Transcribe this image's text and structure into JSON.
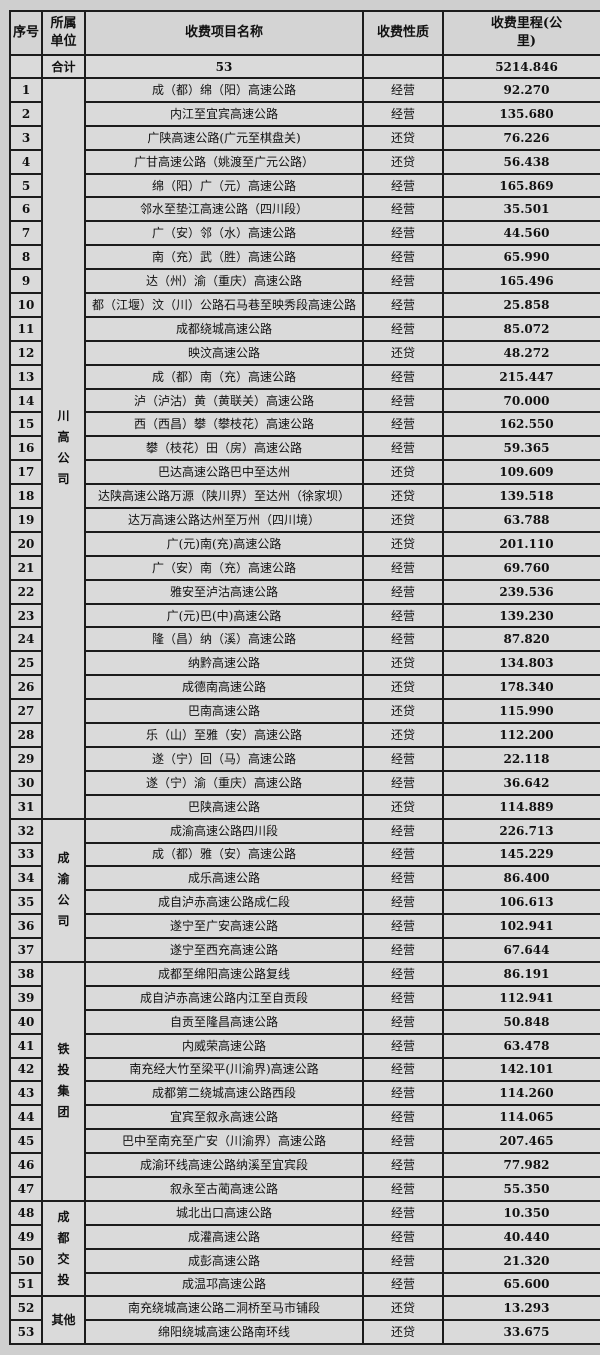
{
  "headers": {
    "seq": "序号",
    "unit": "所属单位",
    "name": "收费项目名称",
    "nature": "收费性质",
    "mileage": "收费里程(公里)"
  },
  "total": {
    "label": "合计",
    "count": "53",
    "mileage": "5214.846"
  },
  "groups": [
    {
      "unit": "川高公司",
      "rows": [
        [
          "1",
          "成（都）绵（阳）高速公路",
          "经营",
          "92.270"
        ],
        [
          "2",
          "内江至宜宾高速公路",
          "经营",
          "135.680"
        ],
        [
          "3",
          "广陕高速公路(广元至棋盘关)",
          "还贷",
          "76.226"
        ],
        [
          "4",
          "广甘高速公路（姚渡至广元公路）",
          "还贷",
          "56.438"
        ],
        [
          "5",
          "绵（阳）广（元）高速公路",
          "经营",
          "165.869"
        ],
        [
          "6",
          "邻水至垫江高速公路（四川段）",
          "经营",
          "35.501"
        ],
        [
          "7",
          "广（安）邻（水）高速公路",
          "经营",
          "44.560"
        ],
        [
          "8",
          "南（充）武（胜）高速公路",
          "经营",
          "65.990"
        ],
        [
          "9",
          "达（州）渝（重庆）高速公路",
          "经营",
          "165.496"
        ],
        [
          "10",
          "都（江堰）汶（川）公路石马巷至映秀段高速公路",
          "经营",
          "25.858"
        ],
        [
          "11",
          "成都绕城高速公路",
          "经营",
          "85.072"
        ],
        [
          "12",
          "映汶高速公路",
          "还贷",
          "48.272"
        ],
        [
          "13",
          "成（都）南（充）高速公路",
          "经营",
          "215.447"
        ],
        [
          "14",
          "泸（泸沽）黄（黄联关）高速公路",
          "经营",
          "70.000"
        ],
        [
          "15",
          "西（西昌）攀（攀枝花）高速公路",
          "经营",
          "162.550"
        ],
        [
          "16",
          "攀（枝花）田（房）高速公路",
          "经营",
          "59.365"
        ],
        [
          "17",
          "巴达高速公路巴中至达州",
          "还贷",
          "109.609"
        ],
        [
          "18",
          "达陕高速公路万源（陕川界）至达州（徐家坝）",
          "还贷",
          "139.518"
        ],
        [
          "19",
          "达万高速公路达州至万州（四川境）",
          "还贷",
          "63.788"
        ],
        [
          "20",
          "广(元)南(充)高速公路",
          "还贷",
          "201.110"
        ],
        [
          "21",
          "广（安）南（充）高速公路",
          "经营",
          "69.760"
        ],
        [
          "22",
          "雅安至泸沽高速公路",
          "经营",
          "239.536"
        ],
        [
          "23",
          "广(元)巴(中)高速公路",
          "经营",
          "139.230"
        ],
        [
          "24",
          "隆（昌）纳（溪）高速公路",
          "经营",
          "87.820"
        ],
        [
          "25",
          "纳黔高速公路",
          "还贷",
          "134.803"
        ],
        [
          "26",
          "成德南高速公路",
          "还贷",
          "178.340"
        ],
        [
          "27",
          "巴南高速公路",
          "还贷",
          "115.990"
        ],
        [
          "28",
          "乐（山）至雅（安）高速公路",
          "还贷",
          "112.200"
        ],
        [
          "29",
          "遂（宁）回（马）高速公路",
          "经营",
          "22.118"
        ],
        [
          "30",
          "遂（宁）渝（重庆）高速公路",
          "经营",
          "36.642"
        ],
        [
          "31",
          "巴陕高速公路",
          "还贷",
          "114.889"
        ]
      ]
    },
    {
      "unit": "成渝公司",
      "rows": [
        [
          "32",
          "成渝高速公路四川段",
          "经营",
          "226.713"
        ],
        [
          "33",
          "成（都）雅（安）高速公路",
          "经营",
          "145.229"
        ],
        [
          "34",
          "成乐高速公路",
          "经营",
          "86.400"
        ],
        [
          "35",
          "成自泸赤高速公路成仁段",
          "经营",
          "106.613"
        ],
        [
          "36",
          "遂宁至广安高速公路",
          "经营",
          "102.941"
        ],
        [
          "37",
          "遂宁至西充高速公路",
          "经营",
          "67.644"
        ]
      ]
    },
    {
      "unit": "铁投集团",
      "rows": [
        [
          "38",
          "成都至绵阳高速公路复线",
          "经营",
          "86.191"
        ],
        [
          "39",
          "成自泸赤高速公路内江至自贡段",
          "经营",
          "112.941"
        ],
        [
          "40",
          "自贡至隆昌高速公路",
          "经营",
          "50.848"
        ],
        [
          "41",
          "内威荣高速公路",
          "经营",
          "63.478"
        ],
        [
          "42",
          "南充经大竹至梁平(川渝界)高速公路",
          "经营",
          "142.101"
        ],
        [
          "43",
          "成都第二绕城高速公路西段",
          "经营",
          "114.260"
        ],
        [
          "44",
          "宜宾至叙永高速公路",
          "经营",
          "114.065"
        ],
        [
          "45",
          "巴中至南充至广安（川渝界）高速公路",
          "经营",
          "207.465"
        ],
        [
          "46",
          "成渝环线高速公路纳溪至宜宾段",
          "经营",
          "77.982"
        ],
        [
          "47",
          "叙永至古蔺高速公路",
          "经营",
          "55.350"
        ]
      ]
    },
    {
      "unit": "成都交投",
      "rows": [
        [
          "48",
          "城北出口高速公路",
          "经营",
          "10.350"
        ],
        [
          "49",
          "成灌高速公路",
          "经营",
          "40.440"
        ],
        [
          "50",
          "成彭高速公路",
          "经营",
          "21.320"
        ],
        [
          "51",
          "成温邛高速公路",
          "经营",
          "65.600"
        ]
      ]
    },
    {
      "unit": "其他",
      "horizontal": true,
      "rows": [
        [
          "52",
          "南充绕城高速公路二洞桥至马市铺段",
          "还贷",
          "13.293"
        ],
        [
          "53",
          "绵阳绕城高速公路南环线",
          "还贷",
          "33.675"
        ]
      ]
    }
  ]
}
